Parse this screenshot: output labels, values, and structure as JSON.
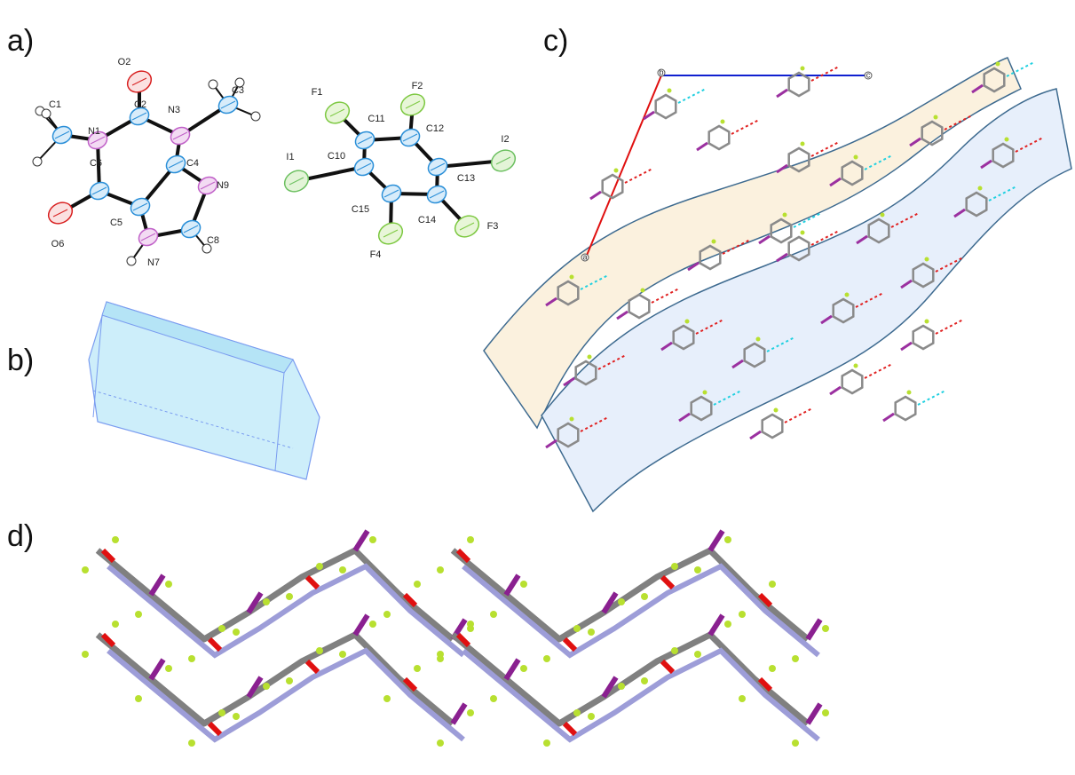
{
  "panels": {
    "a": "a)",
    "b": "b)",
    "c": "c)",
    "d": "d)"
  },
  "molecule1": {
    "atoms": [
      "C1",
      "N1",
      "C2",
      "O2",
      "N3",
      "C3",
      "C4",
      "N9",
      "C8",
      "N7",
      "C5",
      "C6",
      "O6"
    ]
  },
  "molecule2": {
    "atoms": [
      "F1",
      "C11",
      "F2",
      "C12",
      "I2",
      "C13",
      "C14",
      "F3",
      "C10",
      "I1",
      "C15",
      "F4"
    ]
  },
  "unit_cell": {
    "axes": [
      "b",
      "c",
      "a"
    ]
  }
}
